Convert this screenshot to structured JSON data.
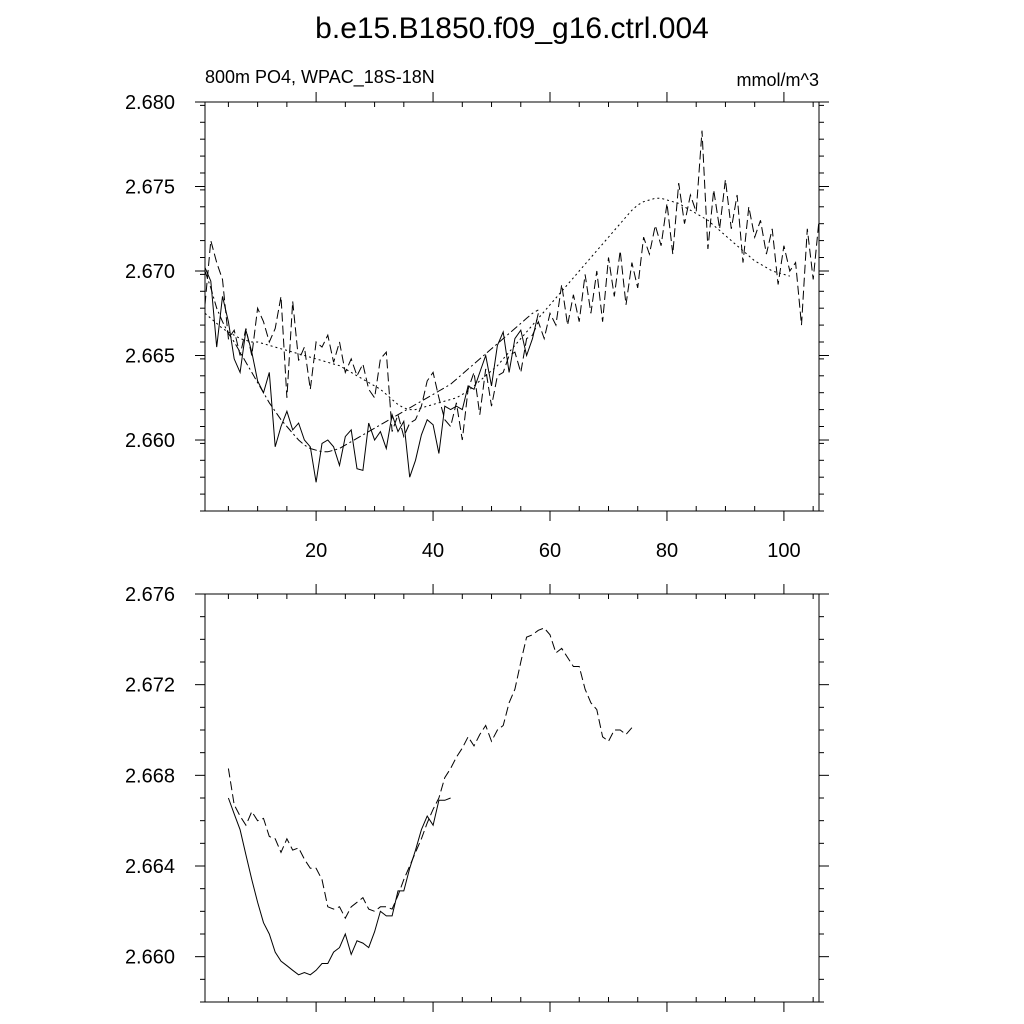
{
  "figure": {
    "title": "b.e15.B1850.f09_g16.ctrl.004"
  },
  "chart_data": [
    {
      "type": "line",
      "subtitle_left": "800m PO4, WPAC_18S-18N",
      "subtitle_right": "mmol/m^3",
      "xlim": [
        1,
        106
      ],
      "ylim": [
        2.6558,
        2.68
      ],
      "x_ticks": [
        20,
        40,
        60,
        80,
        100
      ],
      "x_tick_labels": [
        "20",
        "40",
        "60",
        "80",
        "100"
      ],
      "y_ticks": [
        2.66,
        2.665,
        2.67,
        2.675,
        2.68
      ],
      "y_tick_labels": [
        "2.660",
        "2.665",
        "2.670",
        "2.675",
        "2.680"
      ],
      "grid": false,
      "series": [
        {
          "style": "solid",
          "x_start": 1,
          "values": [
            2.6702,
            2.6694,
            2.6655,
            2.6685,
            2.667,
            2.6648,
            2.664,
            2.6665,
            2.6652,
            2.6635,
            2.6628,
            2.664,
            2.6596,
            2.6608,
            2.6617,
            2.6606,
            2.661,
            2.66,
            2.6596,
            2.6575,
            2.6598,
            2.66,
            2.6596,
            2.6585,
            2.6602,
            2.6606,
            2.6583,
            2.6582,
            2.661,
            2.66,
            2.6605,
            2.6595,
            2.6615,
            2.6605,
            2.6611,
            2.6578,
            2.6588,
            2.6603,
            2.6612,
            2.6609,
            2.6592,
            2.662,
            2.6618,
            2.662,
            2.6618,
            2.6632,
            2.663,
            2.664,
            2.665,
            2.6632,
            2.6656,
            2.6664,
            2.664,
            2.666,
            2.6665,
            2.665,
            2.666,
            2.6675
          ]
        },
        {
          "style": "dashed",
          "x_start": 1,
          "values": [
            2.668,
            2.6718,
            2.6705,
            2.6695,
            2.666,
            2.6665,
            2.665,
            2.6666,
            2.665,
            2.6678,
            2.667,
            2.6658,
            2.6666,
            2.6685,
            2.6625,
            2.6682,
            2.6647,
            2.6655,
            2.663,
            2.6658,
            2.6655,
            2.6662,
            2.6646,
            2.6658,
            2.664,
            2.6648,
            2.6638,
            2.6645,
            2.663,
            2.6625,
            2.6648,
            2.6652,
            2.6605,
            2.6615,
            2.6602,
            2.661,
            2.6612,
            2.662,
            2.6635,
            2.664,
            2.6625,
            2.6612,
            2.6608,
            2.6622,
            2.66,
            2.663,
            2.664,
            2.6615,
            2.6642,
            2.662,
            2.6638,
            2.664,
            2.665,
            2.6652,
            2.664,
            2.666,
            2.6662,
            2.667,
            2.666,
            2.6675,
            2.6668,
            2.6692,
            2.6668,
            2.6686,
            2.667,
            2.6698,
            2.6675,
            2.67,
            2.667,
            2.6708,
            2.6685,
            2.6712,
            2.668,
            2.6705,
            2.669,
            2.672,
            2.671,
            2.6727,
            2.6715,
            2.674,
            2.671,
            2.6752,
            2.6728,
            2.6745,
            2.6735,
            2.6783,
            2.6713,
            2.6748,
            2.6725,
            2.6754,
            2.6725,
            2.6745,
            2.6705,
            2.6738,
            2.672,
            2.673,
            2.671,
            2.6725,
            2.6692,
            2.6715,
            2.67,
            2.6705,
            2.6668,
            2.6725,
            2.6695,
            2.673
          ]
        },
        {
          "style": "dash-dot",
          "x_start": 1,
          "values": [
            2.67,
            2.669,
            2.6678,
            2.667,
            2.6663,
            2.6658,
            2.6652,
            2.6646,
            2.664,
            2.6634,
            2.6628,
            2.6622,
            2.6617,
            2.6612,
            2.6608,
            2.6604,
            2.66,
            2.6597,
            2.6595,
            2.6594,
            2.6593,
            2.6593,
            2.6594,
            2.6595,
            2.6597,
            2.6599,
            2.6601,
            2.6603,
            2.6605,
            2.6607,
            2.6609,
            2.6611,
            2.6613,
            2.6615,
            2.6617,
            2.6619,
            2.6621,
            2.6623,
            2.6625,
            2.6627,
            2.6629,
            2.6631,
            2.6633,
            2.6636,
            2.6639,
            2.6642,
            2.6645,
            2.6648,
            2.6651,
            2.6654,
            2.6657,
            2.666,
            2.6663,
            2.6666,
            2.6669,
            2.6672,
            2.6675,
            2.6677
          ]
        },
        {
          "style": "dotted",
          "x_start": 1,
          "values": [
            2.6675,
            2.6672,
            2.6669,
            2.6666,
            2.6664,
            2.6662,
            2.666,
            2.6659,
            2.6658,
            2.6658,
            2.6657,
            2.6656,
            2.6655,
            2.6654,
            2.6653,
            2.6652,
            2.6651,
            2.665,
            2.6649,
            2.6648,
            2.6647,
            2.6646,
            2.6645,
            2.6644,
            2.6642,
            2.664,
            2.6638,
            2.6636,
            2.6634,
            2.6632,
            2.663,
            2.6627,
            2.6624,
            2.6621,
            2.6619,
            2.6618,
            2.6618,
            2.6619,
            2.662,
            2.6621,
            2.6622,
            2.6623,
            2.6624,
            2.6625,
            2.6627,
            2.6629,
            2.6632,
            2.6635,
            2.6638,
            2.6641,
            2.6644,
            2.6648,
            2.6652,
            2.6656,
            2.666,
            2.6664,
            2.6668,
            2.6672,
            2.6676,
            2.668,
            2.6684,
            2.6688,
            2.6692,
            2.6696,
            2.67,
            2.6704,
            2.6708,
            2.6712,
            2.6716,
            2.672,
            2.6724,
            2.6728,
            2.6732,
            2.6736,
            2.6739,
            2.6741,
            2.6742,
            2.6743,
            2.6743,
            2.6742,
            2.6741,
            2.674,
            2.6738,
            2.6736,
            2.6734,
            2.6732,
            2.673,
            2.6727,
            2.6724,
            2.6721,
            2.6718,
            2.6715,
            2.6712,
            2.6709,
            2.6706,
            2.6704,
            2.6702,
            2.67,
            2.6699,
            2.6698,
            2.6697
          ]
        }
      ]
    },
    {
      "type": "line",
      "xlim": [
        1,
        106
      ],
      "ylim": [
        2.658,
        2.676
      ],
      "x_ticks": [
        20,
        40,
        60,
        80,
        100
      ],
      "y_ticks": [
        2.66,
        2.664,
        2.668,
        2.672,
        2.676
      ],
      "y_tick_labels": [
        "2.660",
        "2.664",
        "2.668",
        "2.672",
        "2.676"
      ],
      "grid": false,
      "series": [
        {
          "style": "solid",
          "x_start": 5,
          "values": [
            2.667,
            2.6663,
            2.6656,
            2.6645,
            2.6634,
            2.6624,
            2.6615,
            2.661,
            2.6602,
            2.6598,
            2.6596,
            2.6594,
            2.6592,
            2.6593,
            2.6592,
            2.6594,
            2.6597,
            2.6597,
            2.6602,
            2.6604,
            2.661,
            2.6601,
            2.6607,
            2.6606,
            2.6604,
            2.6611,
            2.662,
            2.6618,
            2.6618,
            2.6629,
            2.6629,
            2.6639,
            2.6647,
            2.6656,
            2.6662,
            2.6658,
            2.6669,
            2.6669,
            2.667
          ]
        },
        {
          "style": "dashed",
          "x_start": 5,
          "values": [
            2.6683,
            2.6667,
            2.6662,
            2.6658,
            2.6664,
            2.666,
            2.6661,
            2.6653,
            2.6652,
            2.6646,
            2.6652,
            2.6647,
            2.6648,
            2.6643,
            2.6639,
            2.6639,
            2.6634,
            2.6622,
            2.6621,
            2.6622,
            2.6617,
            2.6622,
            2.6624,
            2.6626,
            2.6621,
            2.662,
            2.6622,
            2.6622,
            2.6621,
            2.6627,
            2.6634,
            2.664,
            2.6646,
            2.6652,
            2.6659,
            2.6665,
            2.667,
            2.6679,
            2.6683,
            2.6688,
            2.6692,
            2.6697,
            2.6693,
            2.6698,
            2.6702,
            2.6695,
            2.67,
            2.6702,
            2.6712,
            2.6718,
            2.673,
            2.6741,
            2.6742,
            2.6744,
            2.6745,
            2.6742,
            2.6734,
            2.6736,
            2.6732,
            2.6728,
            2.6728,
            2.6718,
            2.6712,
            2.6709,
            2.6697,
            2.6695,
            2.67,
            2.67,
            2.6698,
            2.6701
          ]
        }
      ]
    }
  ]
}
